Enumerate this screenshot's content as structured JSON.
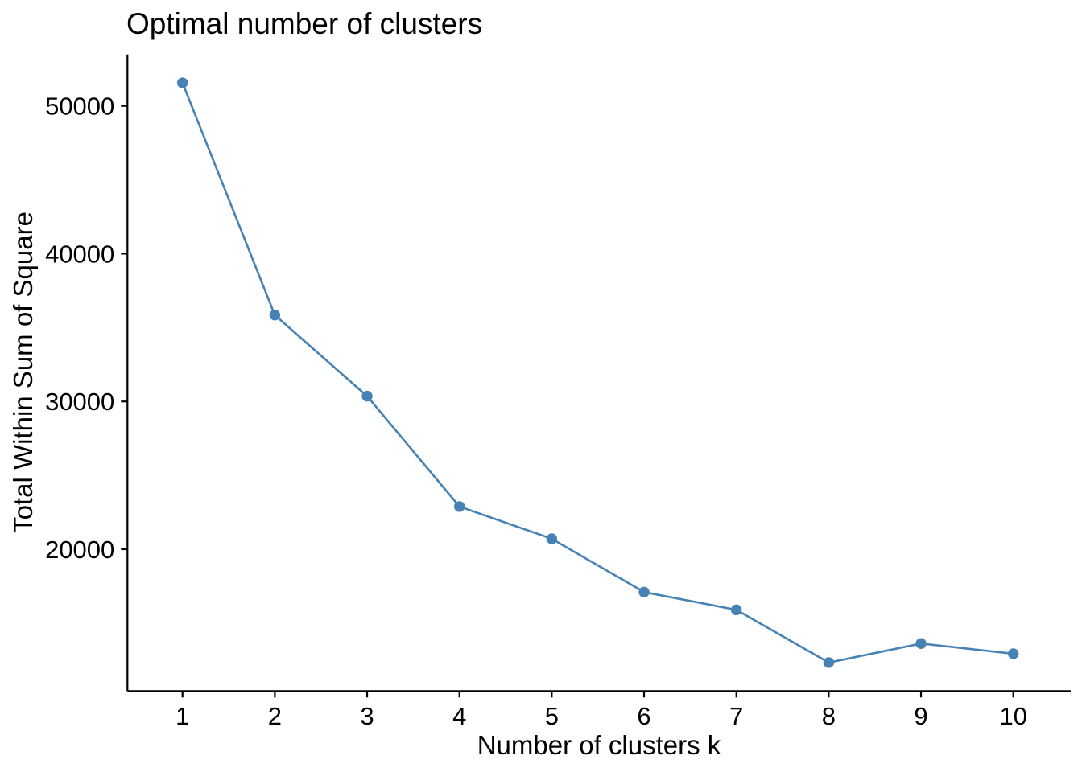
{
  "chart_data": {
    "type": "line",
    "title": "Optimal number of clusters",
    "xlabel": "Number of clusters k",
    "ylabel": "Total Within Sum of Square",
    "series": [
      {
        "name": "total-within-sum-of-square",
        "x": [
          1,
          2,
          3,
          4,
          5,
          6,
          7,
          8,
          9,
          10
        ],
        "y": [
          51560,
          35850,
          30360,
          22890,
          20710,
          17100,
          15900,
          12330,
          13620,
          12930
        ]
      }
    ],
    "x_ticks": [
      "1",
      "2",
      "3",
      "4",
      "5",
      "6",
      "7",
      "8",
      "9",
      "10"
    ],
    "y_ticks": [
      "20000",
      "30000",
      "40000",
      "50000"
    ],
    "xlim": [
      0.4,
      10.62
    ],
    "ylim": [
      10400,
      53500
    ],
    "grid": false,
    "legend": "none",
    "line_color": "#4682B4",
    "marker_color": "#4682B4",
    "axis_color": "#000000",
    "text_color": "#000000",
    "background_color": "#FFFFFF"
  }
}
